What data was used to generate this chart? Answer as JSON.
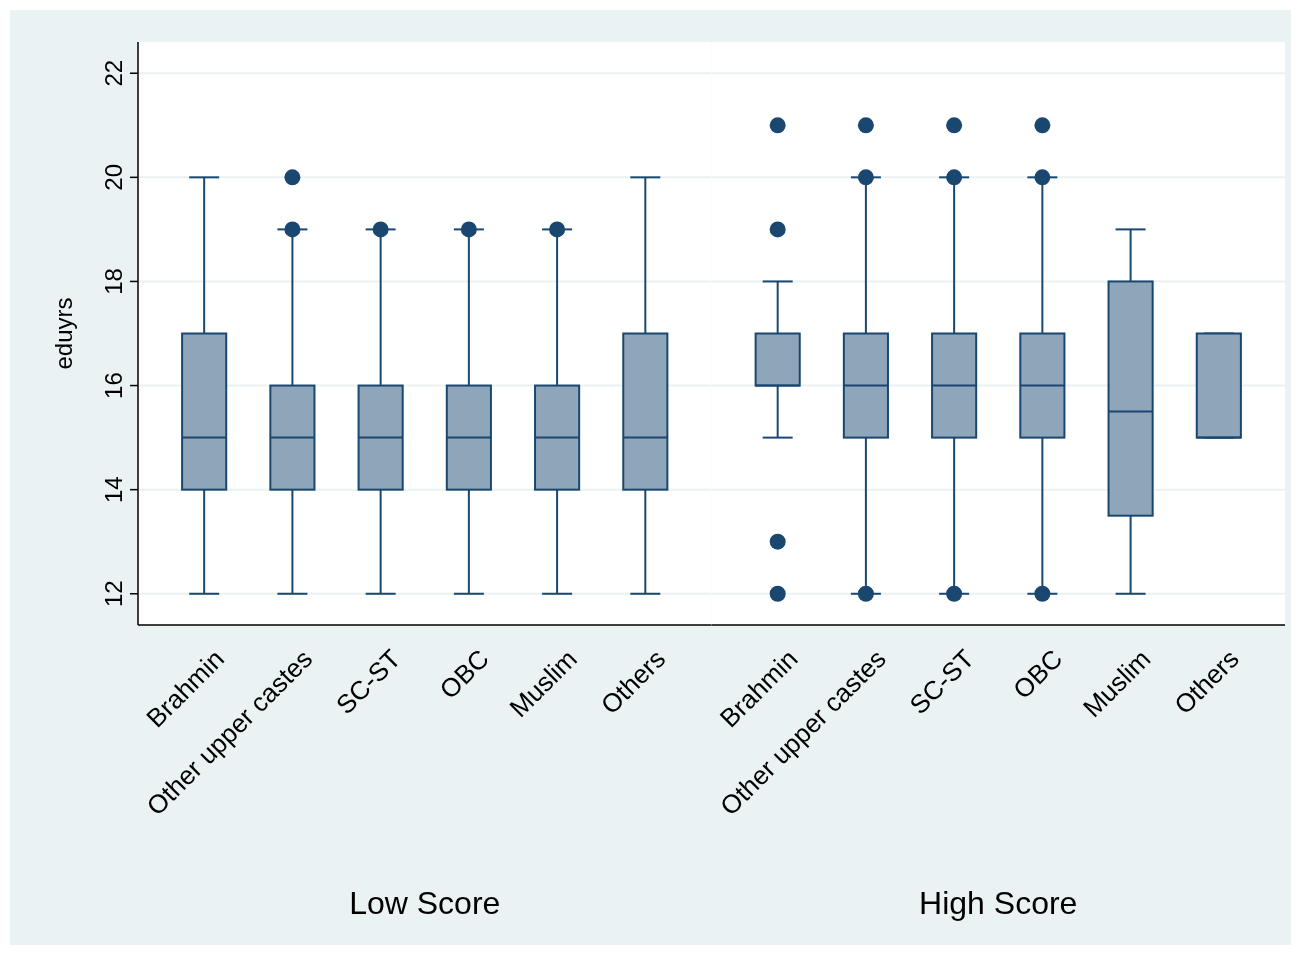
{
  "chart_data": [
    {
      "type": "box",
      "ylabel": "eduyrs",
      "xlabel": "Low Score",
      "categories": [
        "Brahmin",
        "Other upper castes",
        "SC-ST",
        "OBC",
        "Muslim",
        "Others"
      ],
      "ylim": [
        11.4,
        22.6
      ],
      "yticks": [
        12,
        14,
        16,
        18,
        20,
        22
      ],
      "grid": "y",
      "color": "#8fa5ba",
      "boxes": [
        {
          "low": 12,
          "q1": 14,
          "median": 15,
          "q3": 17,
          "high": 20
        },
        {
          "low": 12,
          "q1": 14,
          "median": 15,
          "q3": 16,
          "high": 19,
          "outliers": [
            19,
            20
          ]
        },
        {
          "low": 12,
          "q1": 14,
          "median": 15,
          "q3": 16,
          "high": 19,
          "outliers": [
            19
          ]
        },
        {
          "low": 12,
          "q1": 14,
          "median": 15,
          "q3": 16,
          "high": 19,
          "outliers": [
            19
          ]
        },
        {
          "low": 12,
          "q1": 14,
          "median": 15,
          "q3": 16,
          "high": 19,
          "outliers": [
            19
          ]
        },
        {
          "low": 12,
          "q1": 14,
          "median": 15,
          "q3": 17,
          "high": 20
        }
      ]
    },
    {
      "type": "box",
      "xlabel": "High Score",
      "categories": [
        "Brahmin",
        "Other upper castes",
        "SC-ST",
        "OBC",
        "Muslim",
        "Others"
      ],
      "ylim": [
        11.4,
        22.6
      ],
      "yticks": [
        12,
        14,
        16,
        18,
        20,
        22
      ],
      "grid": "y",
      "color": "#8fa5ba",
      "tick_labels": "x",
      "boxes": [
        {
          "low": 15,
          "q1": 16,
          "median": 16,
          "q3": 17,
          "high": 18,
          "outliers": [
            12,
            13,
            19,
            21
          ]
        },
        {
          "low": 12,
          "q1": 15,
          "median": 16,
          "q3": 17,
          "high": 20,
          "outliers": [
            12,
            20,
            21
          ]
        },
        {
          "low": 12,
          "q1": 15,
          "median": 16,
          "q3": 17,
          "high": 20,
          "outliers": [
            12,
            20,
            21
          ]
        },
        {
          "low": 12,
          "q1": 15,
          "median": 16,
          "q3": 17,
          "high": 20,
          "outliers": [
            12,
            20,
            21
          ]
        },
        {
          "low": 12,
          "q1": 13.5,
          "median": 15.5,
          "q3": 18,
          "high": 19
        },
        {
          "low": 15,
          "q1": 15,
          "median": 15,
          "q3": 17,
          "high": 17
        }
      ]
    }
  ]
}
